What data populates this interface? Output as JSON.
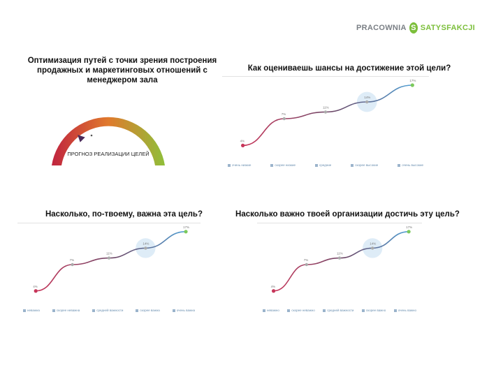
{
  "brand": {
    "word1": "PRACOWNIA",
    "mark": "S",
    "word2": "SATYSFAKCJI",
    "colors": {
      "gray": "#7a7f85",
      "green": "#7cbf3b"
    }
  },
  "titles": {
    "gauge": "Оптимизация путей с точки зрения построения продажных и маркетинговых отношений с менеджером зала",
    "chances": "Как оцениваешь шансы на достижение этой цели?",
    "importance_you": "Насколько, по-твоему, важна эта цель?",
    "importance_org": "Насколько важно твоей организации достичь эту цель?"
  },
  "gauge": {
    "label": "ПРОГНОЗ РЕАЛИЗАЦИИ ЦЕЛЕЙ",
    "needle_value": 0.25,
    "zones": [
      "низкий",
      "средний",
      "высокий"
    ],
    "colors": [
      "#c0243f",
      "#e07a2d",
      "#8fbf3a"
    ]
  },
  "curve_colors": {
    "low": "#c7365a",
    "high": "#4f9fd4",
    "dot": "#aaaaaa",
    "end": "#7cc95c"
  },
  "panels": [
    {
      "id": "chances",
      "points": [
        "4%",
        "7%",
        "11%",
        "14%",
        "17%"
      ],
      "legend": [
        "очень низкие",
        "скорее низкие",
        "средние",
        "скорее высокие",
        "очень высокие"
      ]
    },
    {
      "id": "importance_you",
      "points": [
        "4%",
        "7%",
        "11%",
        "14%",
        "17%"
      ],
      "legend": [
        "неважна",
        "скорее неважна",
        "средней важности",
        "скорее важна",
        "очень важна"
      ]
    },
    {
      "id": "importance_org",
      "points": [
        "4%",
        "7%",
        "11%",
        "14%",
        "17%"
      ],
      "legend": [
        "неважно",
        "скорее неважно",
        "средней важности",
        "скорее важно",
        "очень важно"
      ]
    }
  ]
}
